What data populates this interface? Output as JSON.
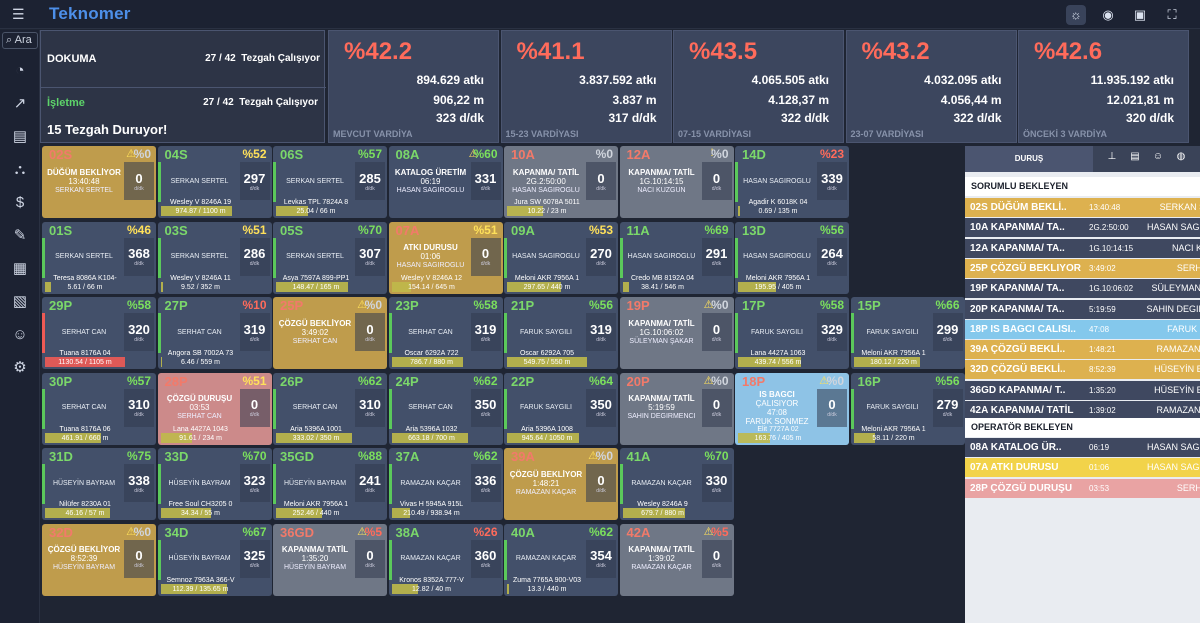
{
  "app": {
    "title": "Teknomer",
    "search_value": "Ara"
  },
  "summary": {
    "dokuma": {
      "title": "DOKUMA",
      "count": "27 / 42",
      "status": "Tezgah Çalışıyor"
    },
    "isletme": {
      "title": "İşletme",
      "count": "27 / 42",
      "status": "Tezgah Çalışıyor"
    },
    "durum": "15 Tezgah Duruyor!"
  },
  "stats": [
    {
      "pct": "%42.2",
      "atki": "894.629 atkı",
      "m": "906,22 m",
      "ddk": "323 d/dk",
      "caption": "MEVCUT VARDİYA"
    },
    {
      "pct": "%41.1",
      "atki": "3.837.592 atkı",
      "m": "3.837 m",
      "ddk": "317 d/dk",
      "caption": "15-23 VARDİYASI"
    },
    {
      "pct": "%43.5",
      "atki": "4.065.505 atkı",
      "m": "4.128,37 m",
      "ddk": "322 d/dk",
      "caption": "07-15 VARDİYASI"
    },
    {
      "pct": "%43.2",
      "atki": "4.032.095 atkı",
      "m": "4.056,44 m",
      "ddk": "322 d/dk",
      "caption": "23-07 VARDİYASI"
    },
    {
      "pct": "%42.6",
      "atki": "11.935.192 atkı",
      "m": "12.021,81 m",
      "ddk": "320 d/dk",
      "caption": "ÖNCEKİ 3 VARDİYA"
    }
  ],
  "tiles": [
    {
      "code": "02S",
      "pct": "%0",
      "pc": "w",
      "warn": "⚠",
      "color": "yellow",
      "codec": "red",
      "st1": "DÜĞÜM BEKLİYOR",
      "st2": "13:40:48",
      "st3": "SERKAN SERTEL",
      "big": "0",
      "foot1": "",
      "foot2": "",
      "bar": 0
    },
    {
      "code": "04S",
      "pct": "%52",
      "pc": "y",
      "warn": "",
      "color": "",
      "codec": "",
      "lbl": "SERKAN SERTEL",
      "big": "297",
      "foot1": "Wesley V 8246A 19",
      "foot2": "974.87 / 1100 m",
      "bar": 0.89
    },
    {
      "code": "06S",
      "pct": "%57",
      "pc": "g",
      "warn": "",
      "color": "",
      "codec": "",
      "lbl": "SERKAN SERTEL",
      "big": "285",
      "foot1": "Levkas TPL 7824A 8",
      "foot2": "25.04 / 66 m",
      "bar": 0.4
    },
    {
      "code": "08A",
      "pct": "%60",
      "pc": "g",
      "warn": "⚠",
      "color": "",
      "codec": "",
      "st1": "KATALOG ÜRETİM",
      "st2": "06:19",
      "st3": "HASAN SAGIROGLU",
      "big": "331",
      "foot1": "",
      "foot2": "",
      "bar": 0
    },
    {
      "code": "10A",
      "pct": "%0",
      "pc": "w",
      "warn": "",
      "color": "gray",
      "codec": "red",
      "st1": "KAPANMA/ TATİL",
      "st2": "2G.2:50:00",
      "st3": "HASAN SAGIROGLU",
      "big": "0",
      "foot1": "Jura SW 6078A 5011",
      "foot2": "10.22 / 23 m",
      "bar": 0.45
    },
    {
      "code": "12A",
      "pct": "%0",
      "pc": "w",
      "warn": "!",
      "color": "gray",
      "codec": "red",
      "st1": "KAPANMA/ TATİL",
      "st2": "1G.10:14:15",
      "st3": "NACI KUZGUN",
      "big": "0",
      "foot1": "",
      "foot2": "",
      "bar": 0
    },
    {
      "code": "14D",
      "pct": "%23",
      "pc": "r",
      "warn": "",
      "color": "",
      "codec": "",
      "lbl": "HASAN SAGIROGLU",
      "big": "339",
      "foot1": "Agadir K 6018K 04",
      "foot2": "0.69 / 135 m",
      "bar": 0.02
    },
    {
      "code": "01S",
      "pct": "%46",
      "pc": "y",
      "warn": "",
      "color": "",
      "codec": "",
      "lbl": "SERKAN SERTEL",
      "big": "368",
      "foot1": "Teresa 8086A K104-",
      "foot2": "5.61 / 66 m",
      "bar": 0.08
    },
    {
      "code": "03S",
      "pct": "%51",
      "pc": "y",
      "warn": "",
      "color": "",
      "codec": "",
      "lbl": "SERKAN SERTEL",
      "big": "286",
      "foot1": "Wesley V 8246A 11",
      "foot2": "9.52 / 352 m",
      "bar": 0.03
    },
    {
      "code": "05S",
      "pct": "%70",
      "pc": "g",
      "warn": "",
      "color": "",
      "codec": "",
      "lbl": "SERKAN SERTEL",
      "big": "307",
      "foot1": "Asya 7597A 899-PP1",
      "foot2": "148.47 / 165 m",
      "bar": 0.9
    },
    {
      "code": "07A",
      "pct": "%51",
      "pc": "y",
      "warn": "",
      "color": "yellow",
      "codec": "red",
      "st1": "ATKI DURUSU",
      "st2": "01:06",
      "st3": "HASAN SAGIROGLU",
      "big": "0",
      "foot1": "Wesley V 8246A 12",
      "foot2": "154.14 / 645 m",
      "bar": 0.24
    },
    {
      "code": "09A",
      "pct": "%53",
      "pc": "y",
      "warn": "",
      "color": "",
      "codec": "",
      "lbl": "HASAN SAGIROGLU",
      "big": "270",
      "foot1": "Meloni AKR 7956A 1",
      "foot2": "297.65 / 440 m",
      "bar": 0.68
    },
    {
      "code": "11A",
      "pct": "%69",
      "pc": "g",
      "warn": "",
      "color": "",
      "codec": "",
      "lbl": "HASAN SAGIROGLU",
      "big": "291",
      "foot1": "Credo MB 8192A 04",
      "foot2": "38.41 / 546 m",
      "bar": 0.07
    },
    {
      "code": "13D",
      "pct": "%56",
      "pc": "g",
      "warn": "",
      "color": "",
      "codec": "",
      "lbl": "HASAN SAGIROGLU",
      "big": "264",
      "foot1": "Meloni AKR 7956A 1",
      "foot2": "195.95 / 405 m",
      "bar": 0.48
    },
    {
      "code": "29P",
      "pct": "%58",
      "pc": "g",
      "warn": "",
      "color": "",
      "codec": "",
      "lbl": "SERHAT CAN",
      "big": "320",
      "foot1": "Tuana 8176A 04",
      "foot2": "1130.54 / 1105 m",
      "bar": 1,
      "barc": "red"
    },
    {
      "code": "27P",
      "pct": "%10",
      "pc": "r",
      "warn": "",
      "color": "",
      "codec": "",
      "lbl": "SERHAT CAN",
      "big": "319",
      "foot1": "Angora SB 7002A 73",
      "foot2": "6.46 / 559 m",
      "bar": 0.01
    },
    {
      "code": "25P",
      "pct": "%0",
      "pc": "w",
      "warn": "⚠",
      "color": "yellow",
      "codec": "red",
      "st1": "ÇÖZGÜ BEKLİYOR",
      "st2": "3:49:02",
      "st3": "SERHAT CAN",
      "big": "0",
      "foot1": "",
      "foot2": "",
      "bar": 0
    },
    {
      "code": "23P",
      "pct": "%58",
      "pc": "g",
      "warn": "",
      "color": "",
      "codec": "",
      "lbl": "SERHAT CAN",
      "big": "319",
      "foot1": "Oscar 6292A 722",
      "foot2": "786.7 / 880 m",
      "bar": 0.89
    },
    {
      "code": "21P",
      "pct": "%56",
      "pc": "g",
      "warn": "",
      "color": "",
      "codec": "",
      "lbl": "FARUK SAYGILI",
      "big": "319",
      "foot1": "Oscar 6292A 705",
      "foot2": "549.75 / 550 m",
      "bar": 1
    },
    {
      "code": "19P",
      "pct": "%0",
      "pc": "w",
      "warn": "⚠",
      "color": "gray",
      "codec": "red",
      "st1": "KAPANMA/ TATİL",
      "st2": "1G.10:06:02",
      "st3": "SÜLEYMAN ŞAKAR",
      "big": "0",
      "foot1": "",
      "foot2": "",
      "bar": 0
    },
    {
      "code": "17P",
      "pct": "%58",
      "pc": "g",
      "warn": "",
      "color": "",
      "codec": "",
      "lbl": "FARUK SAYGILI",
      "big": "329",
      "foot1": "Lana 4427A 1063",
      "foot2": "439.74 / 556 m",
      "bar": 0.79
    },
    {
      "code": "15P",
      "pct": "%66",
      "pc": "g",
      "warn": "",
      "color": "",
      "codec": "",
      "lbl": "FARUK SAYGILI",
      "big": "299",
      "foot1": "Meloni AKR 7956A 1",
      "foot2": "180.12 / 220 m",
      "bar": 0.82
    },
    {
      "code": "30P",
      "pct": "%57",
      "pc": "g",
      "warn": "",
      "color": "",
      "codec": "",
      "lbl": "SERHAT CAN",
      "big": "310",
      "foot1": "Tuana 8176A 06",
      "foot2": "461.91 / 660 m",
      "bar": 0.7
    },
    {
      "code": "28P",
      "pct": "%51",
      "pc": "y",
      "warn": "",
      "color": "pink",
      "codec": "red",
      "st1": "ÇÖZGÜ DURUŞU",
      "st2": "03:53",
      "st3": "SERHAT CAN",
      "big": "0",
      "foot1": "Lana 4427A 1043",
      "foot2": "91.61 / 234 m",
      "bar": 0.39
    },
    {
      "code": "26P",
      "pct": "%62",
      "pc": "g",
      "warn": "",
      "color": "",
      "codec": "",
      "lbl": "SERHAT CAN",
      "big": "310",
      "foot1": "Aria 5396A 1001",
      "foot2": "333.02 / 350 m",
      "bar": 0.95
    },
    {
      "code": "24P",
      "pct": "%62",
      "pc": "g",
      "warn": "",
      "color": "",
      "codec": "",
      "lbl": "SERHAT CAN",
      "big": "350",
      "foot1": "Aria 5396A 1032",
      "foot2": "663.18 / 700 m",
      "bar": 0.95
    },
    {
      "code": "22P",
      "pct": "%64",
      "pc": "g",
      "warn": "",
      "color": "",
      "codec": "",
      "lbl": "FARUK SAYGILI",
      "big": "350",
      "foot1": "Aria 5396A 1008",
      "foot2": "945.64 / 1050 m",
      "bar": 0.9
    },
    {
      "code": "20P",
      "pct": "%0",
      "pc": "w",
      "warn": "⚠",
      "color": "gray",
      "codec": "red",
      "st1": "KAPANMA/ TATİL",
      "st2": "5:19:59",
      "st3": "SAHIN DEGIRMENCI",
      "big": "0",
      "foot1": "",
      "foot2": "",
      "bar": 0
    },
    {
      "code": "18P",
      "pct": "%0",
      "pc": "w",
      "warn": "⚠",
      "color": "blue",
      "codec": "red",
      "st1": "IS BAGCI",
      "st2": "ÇALISIYOR",
      "st3": "47:08",
      "st4": "FARUK SONMEZ",
      "big": "0",
      "foot1": "Elit 7727A 02",
      "foot2": "163.76 / 405 m",
      "bar": 0.4
    },
    {
      "code": "16P",
      "pct": "%56",
      "pc": "g",
      "warn": "",
      "color": "",
      "codec": "",
      "lbl": "FARUK SAYGILI",
      "big": "279",
      "foot1": "Meloni AKR 7956A 1",
      "foot2": "58.11 / 220 m",
      "bar": 0.26
    },
    {
      "code": "31D",
      "pct": "%75",
      "pc": "g",
      "warn": "",
      "color": "",
      "codec": "",
      "lbl": "HÜSEYİN BAYRAM",
      "big": "338",
      "foot1": "Nilüfer 8230A 01",
      "foot2": "46.16 / 57 m",
      "bar": 0.81
    },
    {
      "code": "33D",
      "pct": "%70",
      "pc": "g",
      "warn": "",
      "color": "",
      "codec": "",
      "lbl": "HÜSEYİN BAYRAM",
      "big": "323",
      "foot1": "Free Soul CH3205 0",
      "foot2": "34.34 / 55 m",
      "bar": 0.62
    },
    {
      "code": "35GD",
      "pct": "%88",
      "pc": "g",
      "warn": "",
      "color": "",
      "codec": "",
      "lbl": "HÜSEYİN BAYRAM",
      "big": "241",
      "foot1": "Meloni AKR 7956A 1",
      "foot2": "252.46 / 440 m",
      "bar": 0.57
    },
    {
      "code": "37A",
      "pct": "%62",
      "pc": "g",
      "warn": "",
      "color": "",
      "codec": "",
      "lbl": "RAMAZAN KAÇAR",
      "big": "336",
      "foot1": "Vivas H 5945A 915L",
      "foot2": "210.49 / 938.94 m",
      "bar": 0.22
    },
    {
      "code": "39A",
      "pct": "%0",
      "pc": "w",
      "warn": "⚠",
      "color": "yellow",
      "codec": "red",
      "st1": "ÇÖZGÜ BEKLİYOR",
      "st2": "1:48:21",
      "st3": "RAMAZAN KAÇAR",
      "big": "0",
      "foot1": "",
      "foot2": "",
      "bar": 0
    },
    {
      "code": "41A",
      "pct": "%70",
      "pc": "g",
      "warn": "",
      "color": "",
      "codec": "",
      "lbl": "RAMAZAN KAÇAR",
      "big": "330",
      "foot1": "Wesley 8246A 9",
      "foot2": "679.7 / 880 m",
      "bar": 0.77
    },
    {
      "code": "32D",
      "pct": "%0",
      "pc": "w",
      "warn": "⚠",
      "color": "yellow",
      "codec": "red",
      "st1": "ÇÖZGÜ BEKLİYOR",
      "st2": "8:52:39",
      "st3": "HÜSEYİN BAYRAM",
      "big": "0",
      "foot1": "",
      "foot2": "",
      "bar": 0
    },
    {
      "code": "34D",
      "pct": "%67",
      "pc": "g",
      "warn": "",
      "color": "",
      "codec": "",
      "lbl": "HÜSEYİN BAYRAM",
      "big": "325",
      "foot1": "Semnoz 7963A 366-V",
      "foot2": "112.39 / 135.65 m",
      "bar": 0.83
    },
    {
      "code": "36GD",
      "pct": "%5",
      "pc": "r",
      "warn": "⚠",
      "color": "gray",
      "codec": "red",
      "st1": "KAPANMA/ TATİL",
      "st2": "1:35:20",
      "st3": "HÜSEYİN BAYRAM",
      "big": "0",
      "foot1": "",
      "foot2": "",
      "bar": 0
    },
    {
      "code": "38A",
      "pct": "%26",
      "pc": "r",
      "warn": "",
      "color": "",
      "codec": "",
      "lbl": "RAMAZAN KAÇAR",
      "big": "360",
      "foot1": "Kronos 8352A 777-V",
      "foot2": "12.82 / 40 m",
      "bar": 0.32
    },
    {
      "code": "40A",
      "pct": "%62",
      "pc": "g",
      "warn": "",
      "color": "",
      "codec": "",
      "lbl": "RAMAZAN KAÇAR",
      "big": "354",
      "foot1": "Zuma 7765A 900-V03",
      "foot2": "13.3 / 440 m",
      "bar": 0.03
    },
    {
      "code": "42A",
      "pct": "%5",
      "pc": "r",
      "warn": "⚠",
      "color": "gray",
      "codec": "red",
      "st1": "KAPANMA/ TATİL",
      "st2": "1:39:02",
      "st3": "RAMAZAN KAÇAR",
      "big": "0",
      "foot1": "",
      "foot2": "",
      "bar": 0
    }
  ],
  "panel": {
    "tab": "DURUŞ",
    "section1": "SORUMLU BEKLEYEN",
    "section2": "OPERATÖR BEKLEYEN",
    "rows1": [
      {
        "name": "02S DÜĞÜM BEKLİ..",
        "time": "13:40:48",
        "person": "SERKAN SERTEL",
        "c": "ye"
      },
      {
        "name": "10A KAPANMA/ TA..",
        "time": "2G.2:50:00",
        "person": "HASAN SAGIROGLU",
        "c": "dk"
      },
      {
        "name": "12A KAPANMA/ TA..",
        "time": "1G.10:14:15",
        "person": "NACI KUZGUN",
        "c": "dk"
      },
      {
        "name": "25P ÇÖZGÜ BEKLIYOR",
        "time": "3:49:02",
        "person": "SERHAT CAN",
        "c": "ye"
      },
      {
        "name": "19P KAPANMA/ TA..",
        "time": "1G.10:06:02",
        "person": "SÜLEYMAN ŞAKAR",
        "c": "dk"
      },
      {
        "name": "20P KAPANMA/ TA..",
        "time": "5:19:59",
        "person": "SAHIN DEGIRMENCI",
        "c": "dk"
      },
      {
        "name": "18P IS BAGCI CALISI..",
        "time": "47:08",
        "person": "FARUK SAYGILI",
        "c": "bl"
      },
      {
        "name": "39A ÇÖZGÜ BEKLİ..",
        "time": "1:48:21",
        "person": "RAMAZAN KAÇAR",
        "c": "ye"
      },
      {
        "name": "32D ÇÖZGÜ BEKLİ..",
        "time": "8:52:39",
        "person": "HÜSEYİN BAYRAM",
        "c": "ye"
      },
      {
        "name": "36GD KAPANMA/ T..",
        "time": "1:35:20",
        "person": "HÜSEYİN BAYRAM",
        "c": "dk"
      },
      {
        "name": "42A KAPANMA/ TATİL",
        "time": "1:39:02",
        "person": "RAMAZAN KAÇAR",
        "c": "dk"
      }
    ],
    "rows2": [
      {
        "name": "08A KATALOG ÜR..",
        "time": "06:19",
        "person": "HASAN SAGIROGLU",
        "c": "dk"
      },
      {
        "name": "07A ATKI DURUSU",
        "time": "01:06",
        "person": "HASAN SAGIROGLU",
        "c": "ye2"
      },
      {
        "name": "28P ÇÖZGÜ DURUŞU",
        "time": "03:53",
        "person": "SERHAT CAN",
        "c": "pk"
      }
    ]
  },
  "icons": {
    "menu": "menu-icon",
    "theme": "sun-icon",
    "user": "user-icon",
    "folder": "folder-icon",
    "fullscreen": "fullscreen-icon"
  },
  "unit": "d/dk",
  "badge": "1"
}
